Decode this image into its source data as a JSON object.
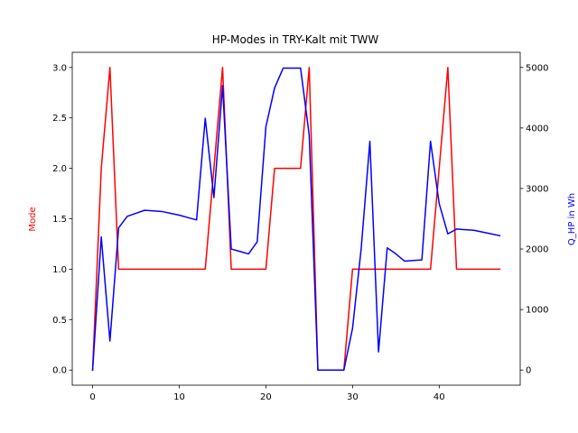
{
  "chart_data": {
    "type": "line",
    "title": "HP-Modes in TRY-Kalt mit TWW",
    "xlabel": "",
    "xlim": [
      -2.35,
      49.35
    ],
    "x_ticks": [
      0,
      10,
      20,
      30,
      40
    ],
    "y_left": {
      "label": "Mode",
      "color": "#ff0000",
      "lim": [
        -0.15,
        3.15
      ],
      "ticks": [
        0.0,
        0.5,
        1.0,
        1.5,
        2.0,
        2.5,
        3.0
      ],
      "tick_labels": [
        "0.0",
        "0.5",
        "1.0",
        "1.5",
        "2.0",
        "2.5",
        "3.0"
      ]
    },
    "y_right": {
      "label": "Q_HP in Wh",
      "color": "#0000ff",
      "lim": [
        -250,
        5250
      ],
      "ticks": [
        0,
        1000,
        2000,
        3000,
        4000,
        5000
      ],
      "tick_labels": [
        "0",
        "1000",
        "2000",
        "3000",
        "4000",
        "5000"
      ]
    },
    "series": [
      {
        "axis": "left",
        "color": "#ff0000",
        "x": [
          0,
          1,
          2,
          3,
          4,
          5,
          6,
          7,
          8,
          9,
          10,
          11,
          12,
          13,
          14,
          15,
          16,
          17,
          18,
          19,
          20,
          21,
          22,
          23,
          24,
          25,
          26,
          27,
          28,
          29,
          30,
          31,
          32,
          33,
          34,
          35,
          36,
          37,
          38,
          39,
          40,
          41,
          42,
          43,
          44,
          45,
          46,
          47
        ],
        "values": [
          0,
          2,
          3,
          1,
          1,
          1,
          1,
          1,
          1,
          1,
          1,
          1,
          1,
          1,
          2,
          3,
          1,
          1,
          1,
          1,
          1,
          2,
          2,
          2,
          2,
          3,
          0,
          0,
          0,
          0,
          1,
          1,
          1,
          1,
          1,
          1,
          1,
          1,
          1,
          1,
          2,
          3,
          1,
          1,
          1,
          1,
          1,
          1
        ]
      },
      {
        "axis": "right",
        "color": "#0000ff",
        "x": [
          0,
          1,
          2,
          3,
          4,
          5,
          6,
          7,
          8,
          9,
          10,
          11,
          12,
          13,
          14,
          15,
          16,
          17,
          18,
          19,
          20,
          21,
          22,
          23,
          24,
          25,
          26,
          27,
          28,
          29,
          30,
          31,
          32,
          33,
          34,
          35,
          36,
          37,
          38,
          39,
          40,
          41,
          42,
          43,
          44,
          45,
          46,
          47
        ],
        "values": [
          0,
          2200,
          480,
          2350,
          2540,
          2590,
          2640,
          2630,
          2620,
          2590,
          2560,
          2520,
          2480,
          4160,
          2850,
          4700,
          2000,
          1960,
          1920,
          2120,
          4020,
          4660,
          4990,
          4990,
          4990,
          3880,
          0,
          0,
          0,
          0,
          690,
          2010,
          3780,
          300,
          2020,
          1920,
          1800,
          1810,
          1820,
          3780,
          2750,
          2250,
          2330,
          2320,
          2310,
          2280,
          2250,
          2220
        ]
      }
    ]
  }
}
